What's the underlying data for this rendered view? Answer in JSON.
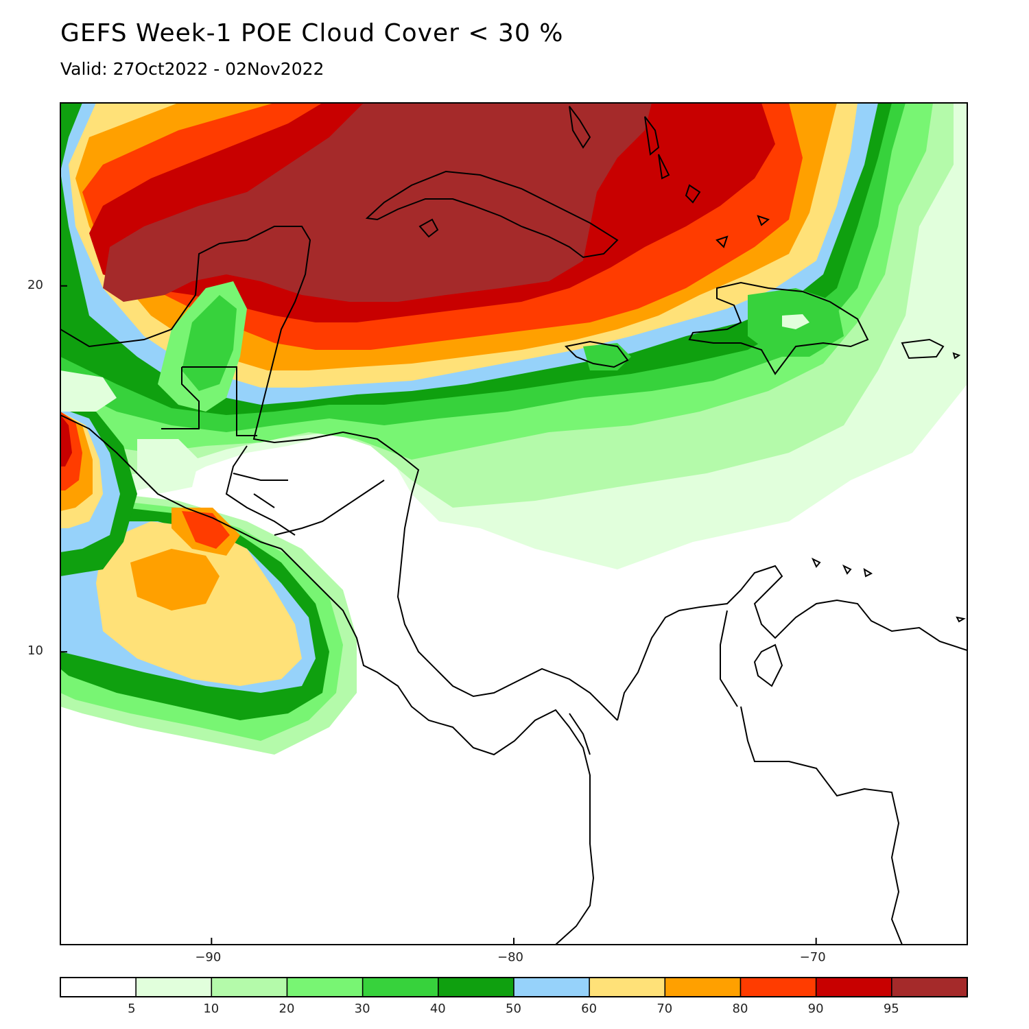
{
  "title": "GEFS Week-1 POE Cloud Cover < 30 %",
  "subtitle": "Valid: 27Oct2022 - 02Nov2022",
  "map": {
    "projection": "lat-lon",
    "lon_range": [
      -95,
      -65
    ],
    "lat_range": [
      2,
      25
    ],
    "x_ticks": [
      {
        "value": -90,
        "label": "−90"
      },
      {
        "value": -80,
        "label": "−80"
      },
      {
        "value": -70,
        "label": "−70"
      }
    ],
    "y_ticks": [
      {
        "value": 20,
        "label": "20"
      },
      {
        "value": 10,
        "label": "10"
      }
    ]
  },
  "colorbar": {
    "colors": [
      "#ffffff",
      "#e1ffdc",
      "#b4faaa",
      "#78f573",
      "#37d23c",
      "#0fa00f",
      "#96d2fa",
      "#ffe178",
      "#ffa000",
      "#ff3c00",
      "#c80000",
      "#a52a2a"
    ],
    "labels": [
      "5",
      "10",
      "20",
      "30",
      "40",
      "50",
      "60",
      "70",
      "80",
      "90",
      "95"
    ]
  }
}
